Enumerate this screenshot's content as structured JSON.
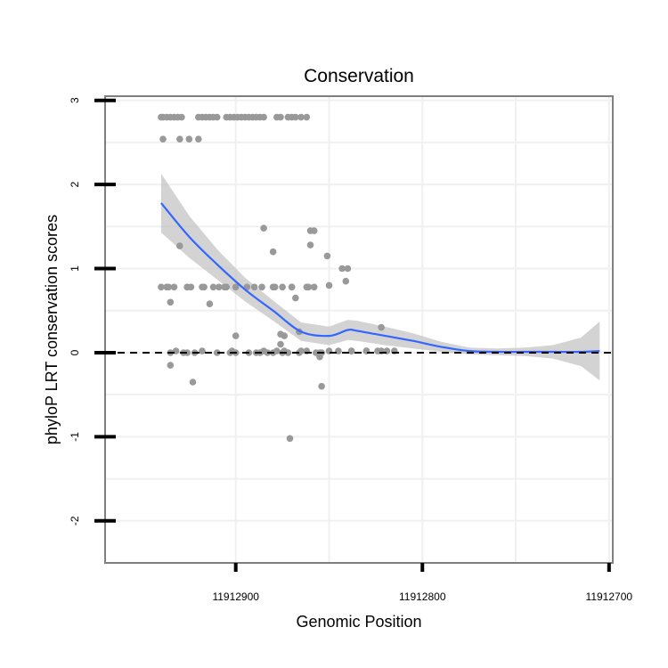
{
  "chart_data": {
    "type": "scatter",
    "title": "Conservation",
    "xlabel": "Genomic Position",
    "ylabel": "phyloP LRT conservation scores",
    "x_reversed": true,
    "xlim": [
      11912970,
      11912698
    ],
    "ylim": [
      -2.5,
      3.05
    ],
    "xticks": [
      11912900,
      11912800,
      11912700
    ],
    "xtick_labels": [
      "11912900",
      "11912800",
      "11912700"
    ],
    "yticks": [
      -2,
      -1,
      0,
      1,
      2,
      3
    ],
    "ytick_labels": [
      "-2",
      "-1",
      "0",
      "1",
      "2",
      "3"
    ],
    "reference_line": {
      "y": 0,
      "style": "dashed"
    },
    "smooth": {
      "x": [
        11912940,
        11912925,
        11912910,
        11912895,
        11912880,
        11912865,
        11912850,
        11912840,
        11912835,
        11912820,
        11912805,
        11912790,
        11912775,
        11912760,
        11912745,
        11912730,
        11912715,
        11912705
      ],
      "y": [
        1.78,
        1.38,
        1.05,
        0.75,
        0.5,
        0.25,
        0.2,
        0.27,
        0.26,
        0.2,
        0.14,
        0.07,
        0.02,
        0.01,
        0.01,
        0.01,
        0.01,
        0.02
      ],
      "band": [
        0.35,
        0.25,
        0.18,
        0.14,
        0.12,
        0.11,
        0.11,
        0.12,
        0.12,
        0.11,
        0.09,
        0.06,
        0.04,
        0.04,
        0.05,
        0.08,
        0.17,
        0.35
      ]
    },
    "series": [
      {
        "name": "scores",
        "x": [
          11912940,
          11912939,
          11912937,
          11912935,
          11912933,
          11912931,
          11912929,
          11912920,
          11912918,
          11912916,
          11912914,
          11912912,
          11912910,
          11912905,
          11912903,
          11912901,
          11912899,
          11912897,
          11912895,
          11912893,
          11912891,
          11912889,
          11912887,
          11912885,
          11912878,
          11912876,
          11912872,
          11912870,
          11912868,
          11912865,
          11912862,
          11912939,
          11912925,
          11912930,
          11912920,
          11912935,
          11912928,
          11912926,
          11912922,
          11912910,
          11912903,
          11912900,
          11912893,
          11912889,
          11912887,
          11912883,
          11912880,
          11912875,
          11912872,
          11912866,
          11912857,
          11912855,
          11912854,
          11912940,
          11912936,
          11912933,
          11912926,
          11912924,
          11912918,
          11912909,
          11912906,
          11912890,
          11912886,
          11912880,
          11912870,
          11912861,
          11912858,
          11912937,
          11912926,
          11912917,
          11912912,
          11912905,
          11912900,
          11912894,
          11912879,
          11912875,
          11912870,
          11912862,
          11912843,
          11912840,
          11912932,
          11912918,
          11912902,
          11912885,
          11912878,
          11912874,
          11912865,
          11912862,
          11912850,
          11912845,
          11912838,
          11912838,
          11912830,
          11912824,
          11912822,
          11912819,
          11912815,
          11912935,
          11912923,
          11912876,
          11912874,
          11912871,
          11912866,
          11912860,
          11912854,
          11912860,
          11912850,
          11912830,
          11912822,
          11912930,
          11912885,
          11912880,
          11912876,
          11912868,
          11912858,
          11912855,
          11912851,
          11912841,
          11912935,
          11912914,
          11912900
        ],
        "y": [
          2.8,
          2.8,
          2.8,
          2.8,
          2.8,
          2.8,
          2.8,
          2.8,
          2.8,
          2.8,
          2.8,
          2.8,
          2.8,
          2.8,
          2.8,
          2.8,
          2.8,
          2.8,
          2.8,
          2.8,
          2.8,
          2.8,
          2.8,
          2.8,
          2.8,
          2.8,
          2.8,
          2.8,
          2.8,
          2.8,
          2.8,
          2.54,
          2.54,
          2.54,
          2.54,
          0.0,
          0.0,
          0.0,
          0.0,
          0.0,
          0.0,
          0.0,
          0.0,
          0.0,
          0.0,
          0.0,
          0.0,
          0.0,
          0.0,
          0.0,
          0.0,
          0.0,
          0.0,
          0.78,
          0.78,
          0.78,
          0.78,
          0.78,
          0.78,
          0.78,
          0.78,
          0.78,
          0.78,
          0.78,
          0.78,
          0.78,
          0.78,
          0.78,
          0.78,
          0.78,
          0.78,
          0.78,
          0.78,
          0.78,
          0.78,
          0.78,
          0.78,
          0.78,
          1.0,
          1.0,
          0.02,
          0.02,
          0.02,
          0.02,
          0.02,
          0.02,
          0.02,
          0.02,
          0.02,
          0.02,
          0.02,
          0.02,
          0.02,
          0.02,
          0.02,
          0.02,
          0.02,
          0.6,
          -0.35,
          0.1,
          0.2,
          -1.02,
          0.25,
          1.28,
          -0.4,
          1.45,
          0.8,
          0.02,
          0.3,
          1.27,
          1.48,
          1.2,
          0.22,
          0.65,
          1.45,
          -0.05,
          1.15,
          0.85,
          -0.15,
          0.58,
          0.2
        ]
      }
    ]
  }
}
